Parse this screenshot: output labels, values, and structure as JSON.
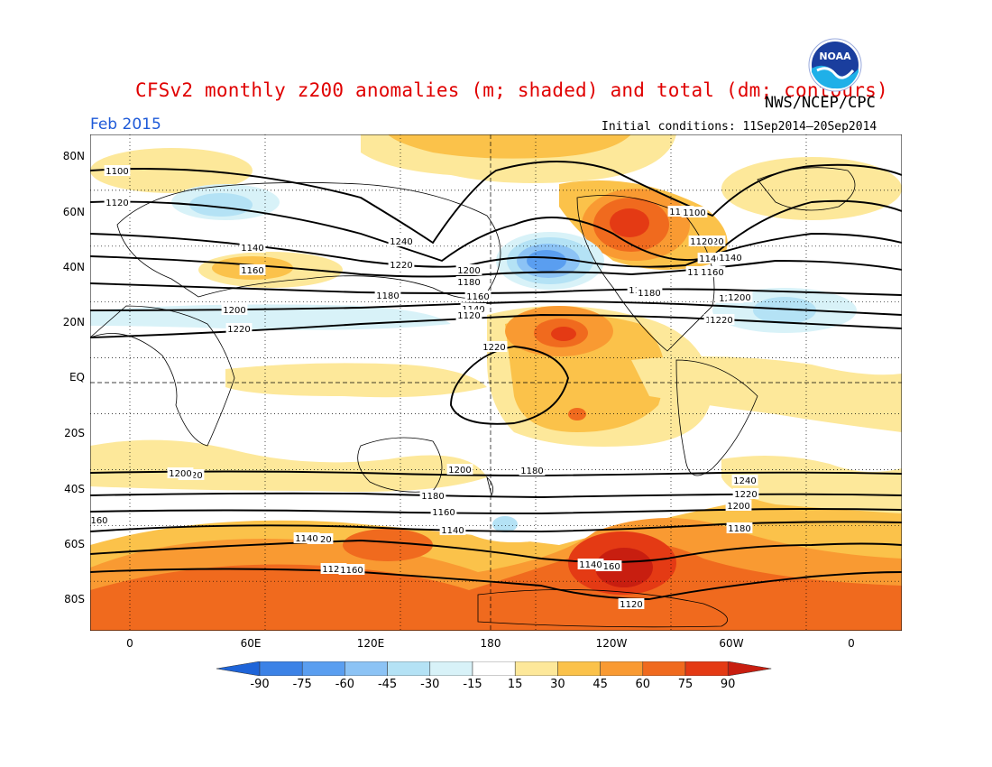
{
  "header": {
    "title": "CFSv2 monthly z200 anomalies (m; shaded) and total (dm; contours)",
    "source": "NWS/NCEP/CPC",
    "month": "Feb 2015",
    "initial_conditions": "Initial conditions: 11Sep2014–20Sep2014",
    "logo_text": "NOAA"
  },
  "map": {
    "lat_labels": [
      "80N",
      "60N",
      "40N",
      "20N",
      "EQ",
      "20S",
      "40S",
      "60S",
      "80S"
    ],
    "lon_labels": [
      "0",
      "60E",
      "120E",
      "180",
      "120W",
      "60W",
      "0"
    ],
    "contour_labels": [
      "1100",
      "1120",
      "1140",
      "1160",
      "1180",
      "1200",
      "1220",
      "1240",
      "1220",
      "1200",
      "1180",
      "1160",
      "1140",
      "1120",
      "1100",
      "1120",
      "1140",
      "1160",
      "1180",
      "1200",
      "1220",
      "1220",
      "1200",
      "1180",
      "1160",
      "1140",
      "1120",
      "1120",
      "1140",
      "1160",
      "1180",
      "1200",
      "1220",
      "1240",
      "1220",
      "1200",
      "1180",
      "1160",
      "1140",
      "1120",
      "1100",
      "1120",
      "1140",
      "1160",
      "1180",
      "1200",
      "1220",
      "160"
    ],
    "colors": {
      "neg90": "#1e64d8",
      "neg75": "#3c82e6",
      "neg60": "#5a9ef0",
      "neg45": "#8cc3f5",
      "neg30": "#b4e2f5",
      "neg15": "#d8f2f8",
      "neutral": "#ffffff",
      "pos15": "#fde89a",
      "pos30": "#fbc24a",
      "pos45": "#f99a32",
      "pos60": "#f06a1e",
      "pos75": "#e43a14",
      "pos90": "#c81e10"
    }
  },
  "colorbar": {
    "labels": [
      "-90",
      "-75",
      "-60",
      "-45",
      "-30",
      "-15",
      "15",
      "30",
      "45",
      "60",
      "75",
      "90"
    ],
    "colors": [
      "#1e64d8",
      "#3c82e6",
      "#5a9ef0",
      "#8cc3f5",
      "#b4e2f5",
      "#d8f2f8",
      "#ffffff",
      "#fde89a",
      "#fbc24a",
      "#f99a32",
      "#f06a1e",
      "#e43a14",
      "#c81e10"
    ]
  }
}
